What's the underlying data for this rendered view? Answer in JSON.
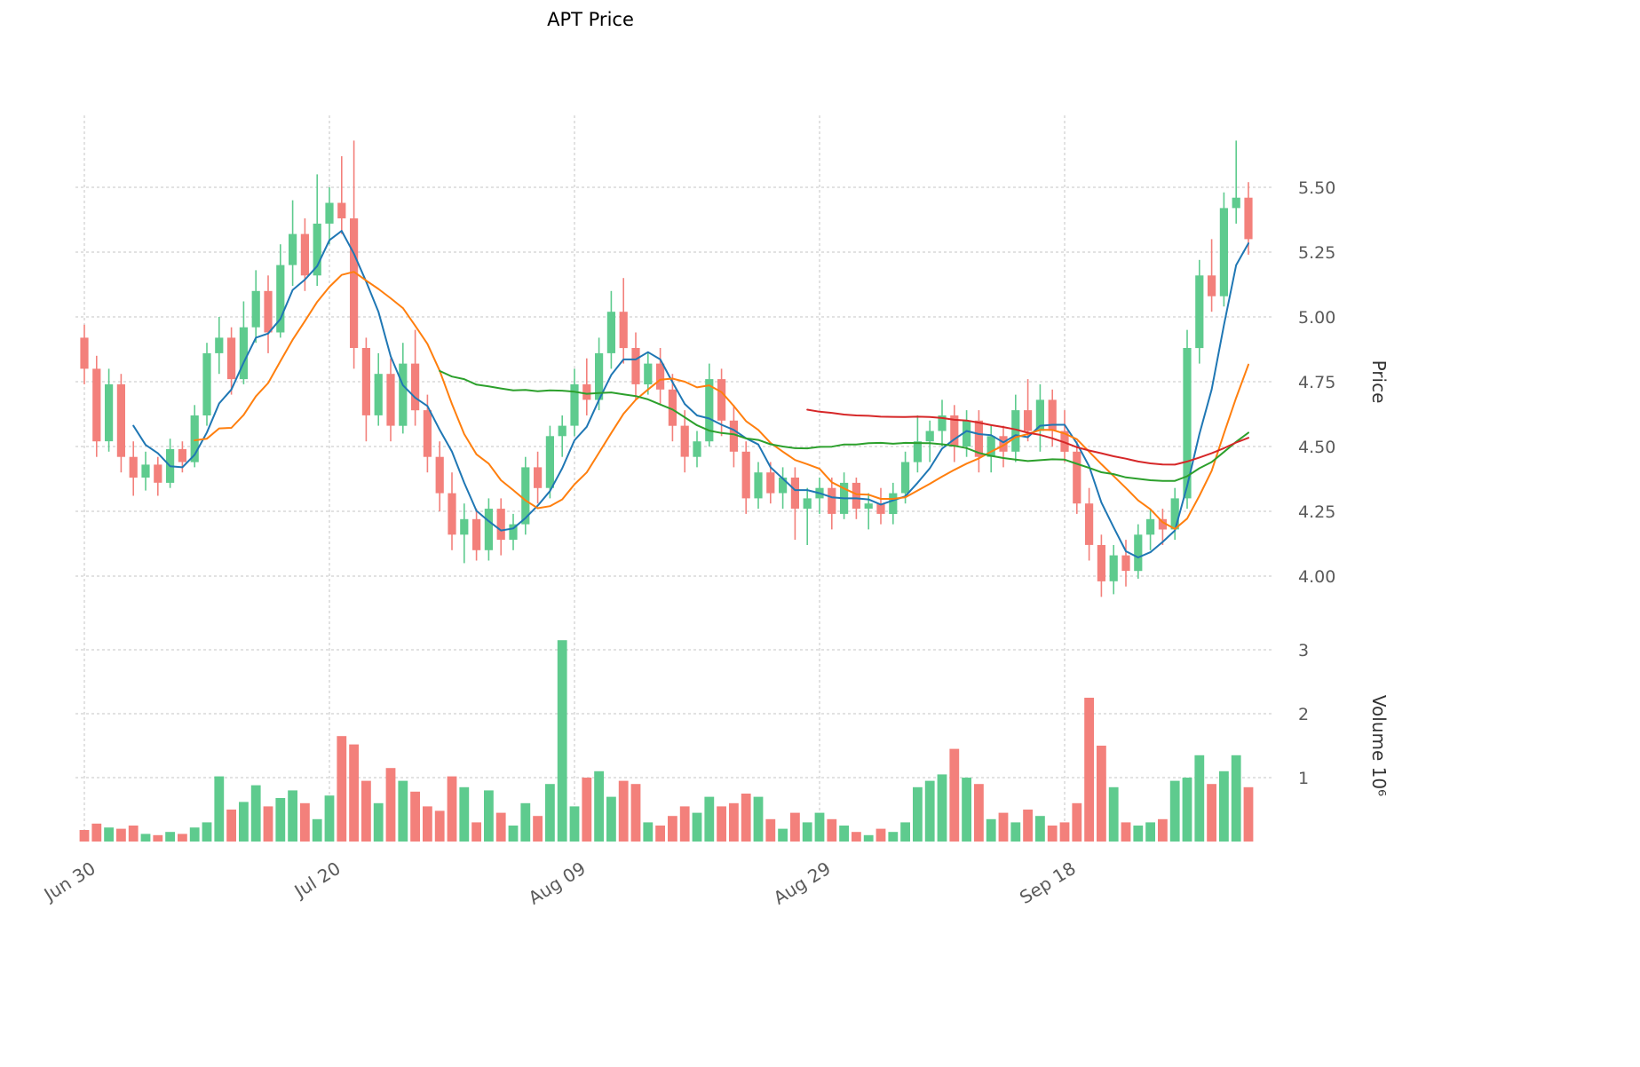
{
  "chart_data": {
    "type": "candlestick",
    "title": "APT Price",
    "ylabel_price": "Price",
    "ylabel_volume": "Volume  10⁶",
    "price_ticks": [
      "4.00",
      "4.25",
      "4.50",
      "4.75",
      "5.00",
      "5.25",
      "5.50"
    ],
    "volume_ticks": [
      "1",
      "2",
      "3"
    ],
    "x_ticks": [
      {
        "index": 0,
        "label": "Jun 30"
      },
      {
        "index": 20,
        "label": "Jul 20"
      },
      {
        "index": 40,
        "label": "Aug 09"
      },
      {
        "index": 60,
        "label": "Aug 29"
      },
      {
        "index": 80,
        "label": "Sep 18"
      }
    ],
    "grid": true,
    "legend_position": "none",
    "price_range": [
      3.85,
      5.75
    ],
    "volume_range_millions": [
      0,
      3.3
    ],
    "colors": {
      "up": "#5ecb8e",
      "down": "#f3807b",
      "grid": "#c4c4c4",
      "tick_label": "#5a5a5a",
      "axis_label": "#333333"
    },
    "moving_averages": [
      {
        "name": "MA5",
        "window": 5,
        "color": "#1f77b4"
      },
      {
        "name": "MA10",
        "window": 10,
        "color": "#ff7f0e"
      },
      {
        "name": "MA30",
        "window": 30,
        "color": "#2ca02c"
      },
      {
        "name": "MA60",
        "window": 60,
        "color": "#d62728"
      }
    ],
    "candles_format": [
      "open",
      "high",
      "low",
      "close",
      "volume_millions"
    ],
    "candles": [
      [
        4.92,
        4.97,
        4.74,
        4.8,
        0.18
      ],
      [
        4.8,
        4.85,
        4.46,
        4.52,
        0.28
      ],
      [
        4.52,
        4.8,
        4.48,
        4.74,
        0.22
      ],
      [
        4.74,
        4.78,
        4.4,
        4.46,
        0.2
      ],
      [
        4.46,
        4.52,
        4.31,
        4.38,
        0.25
      ],
      [
        4.38,
        4.48,
        4.33,
        4.43,
        0.12
      ],
      [
        4.43,
        4.46,
        4.31,
        4.36,
        0.1
      ],
      [
        4.36,
        4.53,
        4.34,
        4.49,
        0.15
      ],
      [
        4.49,
        4.52,
        4.4,
        4.44,
        0.12
      ],
      [
        4.44,
        4.66,
        4.42,
        4.62,
        0.22
      ],
      [
        4.62,
        4.9,
        4.58,
        4.86,
        0.3
      ],
      [
        4.86,
        5.0,
        4.78,
        4.92,
        1.02
      ],
      [
        4.92,
        4.96,
        4.7,
        4.76,
        0.5
      ],
      [
        4.76,
        5.06,
        4.74,
        4.96,
        0.62
      ],
      [
        4.96,
        5.18,
        4.9,
        5.1,
        0.88
      ],
      [
        5.1,
        5.16,
        4.86,
        4.94,
        0.55
      ],
      [
        4.94,
        5.28,
        4.92,
        5.2,
        0.68
      ],
      [
        5.2,
        5.45,
        5.12,
        5.32,
        0.8
      ],
      [
        5.32,
        5.38,
        5.1,
        5.16,
        0.6
      ],
      [
        5.16,
        5.55,
        5.12,
        5.36,
        0.35
      ],
      [
        5.36,
        5.5,
        5.28,
        5.44,
        0.72
      ],
      [
        5.44,
        5.62,
        5.32,
        5.38,
        1.65
      ],
      [
        5.38,
        5.68,
        4.8,
        4.88,
        1.52
      ],
      [
        4.88,
        4.92,
        4.52,
        4.62,
        0.95
      ],
      [
        4.62,
        4.86,
        4.58,
        4.78,
        0.6
      ],
      [
        4.78,
        4.84,
        4.52,
        4.58,
        1.15
      ],
      [
        4.58,
        4.9,
        4.55,
        4.82,
        0.95
      ],
      [
        4.82,
        4.95,
        4.58,
        4.64,
        0.78
      ],
      [
        4.64,
        4.7,
        4.4,
        4.46,
        0.55
      ],
      [
        4.46,
        4.52,
        4.25,
        4.32,
        0.48
      ],
      [
        4.32,
        4.4,
        4.1,
        4.16,
        1.02
      ],
      [
        4.16,
        4.28,
        4.05,
        4.22,
        0.85
      ],
      [
        4.22,
        4.26,
        4.06,
        4.1,
        0.3
      ],
      [
        4.1,
        4.3,
        4.06,
        4.26,
        0.8
      ],
      [
        4.26,
        4.3,
        4.08,
        4.14,
        0.45
      ],
      [
        4.14,
        4.24,
        4.1,
        4.2,
        0.25
      ],
      [
        4.2,
        4.46,
        4.16,
        4.42,
        0.6
      ],
      [
        4.42,
        4.48,
        4.28,
        4.34,
        0.4
      ],
      [
        4.34,
        4.58,
        4.3,
        4.54,
        0.9
      ],
      [
        4.54,
        4.62,
        4.46,
        4.58,
        3.15
      ],
      [
        4.58,
        4.8,
        4.54,
        4.74,
        0.55
      ],
      [
        4.74,
        4.84,
        4.62,
        4.68,
        1.0
      ],
      [
        4.68,
        4.92,
        4.64,
        4.86,
        1.1
      ],
      [
        4.86,
        5.1,
        4.8,
        5.02,
        0.7
      ],
      [
        5.02,
        5.15,
        4.82,
        4.88,
        0.95
      ],
      [
        4.88,
        4.94,
        4.68,
        4.74,
        0.9
      ],
      [
        4.74,
        4.86,
        4.7,
        4.82,
        0.3
      ],
      [
        4.82,
        4.88,
        4.66,
        4.72,
        0.25
      ],
      [
        4.72,
        4.78,
        4.52,
        4.58,
        0.4
      ],
      [
        4.58,
        4.64,
        4.4,
        4.46,
        0.55
      ],
      [
        4.46,
        4.56,
        4.42,
        4.52,
        0.45
      ],
      [
        4.52,
        4.82,
        4.5,
        4.76,
        0.7
      ],
      [
        4.76,
        4.8,
        4.54,
        4.6,
        0.55
      ],
      [
        4.6,
        4.66,
        4.42,
        4.48,
        0.6
      ],
      [
        4.48,
        4.52,
        4.24,
        4.3,
        0.75
      ],
      [
        4.3,
        4.44,
        4.26,
        4.4,
        0.7
      ],
      [
        4.4,
        4.44,
        4.28,
        4.32,
        0.35
      ],
      [
        4.32,
        4.42,
        4.26,
        4.38,
        0.2
      ],
      [
        4.38,
        4.42,
        4.14,
        4.26,
        0.45
      ],
      [
        4.26,
        4.34,
        4.12,
        4.3,
        0.3
      ],
      [
        4.3,
        4.38,
        4.24,
        4.34,
        0.45
      ],
      [
        4.34,
        4.38,
        4.18,
        4.24,
        0.35
      ],
      [
        4.24,
        4.4,
        4.22,
        4.36,
        0.25
      ],
      [
        4.36,
        4.38,
        4.22,
        4.26,
        0.15
      ],
      [
        4.26,
        4.32,
        4.18,
        4.28,
        0.1
      ],
      [
        4.28,
        4.34,
        4.2,
        4.24,
        0.2
      ],
      [
        4.24,
        4.36,
        4.2,
        4.32,
        0.15
      ],
      [
        4.32,
        4.48,
        4.28,
        4.44,
        0.3
      ],
      [
        4.44,
        4.62,
        4.4,
        4.52,
        0.85
      ],
      [
        4.52,
        4.6,
        4.44,
        4.56,
        0.95
      ],
      [
        4.56,
        4.68,
        4.5,
        4.62,
        1.05
      ],
      [
        4.62,
        4.66,
        4.44,
        4.5,
        1.45
      ],
      [
        4.5,
        4.64,
        4.46,
        4.6,
        1.0
      ],
      [
        4.6,
        4.64,
        4.4,
        4.46,
        0.9
      ],
      [
        4.46,
        4.58,
        4.4,
        4.54,
        0.35
      ],
      [
        4.54,
        4.58,
        4.42,
        4.48,
        0.45
      ],
      [
        4.48,
        4.7,
        4.44,
        4.64,
        0.3
      ],
      [
        4.64,
        4.76,
        4.52,
        4.56,
        0.5
      ],
      [
        4.56,
        4.74,
        4.48,
        4.68,
        0.4
      ],
      [
        4.68,
        4.72,
        4.5,
        4.56,
        0.25
      ],
      [
        4.56,
        4.64,
        4.44,
        4.48,
        0.3
      ],
      [
        4.48,
        4.52,
        4.24,
        4.28,
        0.6
      ],
      [
        4.28,
        4.34,
        4.06,
        4.12,
        2.25
      ],
      [
        4.12,
        4.16,
        3.92,
        3.98,
        1.5
      ],
      [
        3.98,
        4.12,
        3.93,
        4.08,
        0.85
      ],
      [
        4.08,
        4.14,
        3.96,
        4.02,
        0.3
      ],
      [
        4.02,
        4.2,
        3.99,
        4.16,
        0.25
      ],
      [
        4.16,
        4.26,
        4.1,
        4.22,
        0.3
      ],
      [
        4.22,
        4.26,
        4.12,
        4.18,
        0.35
      ],
      [
        4.18,
        4.34,
        4.14,
        4.3,
        0.95
      ],
      [
        4.3,
        4.95,
        4.26,
        4.88,
        1.0
      ],
      [
        4.88,
        5.22,
        4.82,
        5.16,
        1.35
      ],
      [
        5.16,
        5.3,
        5.02,
        5.08,
        0.9
      ],
      [
        5.08,
        5.48,
        5.04,
        5.42,
        1.1
      ],
      [
        5.42,
        5.68,
        5.36,
        5.46,
        1.35
      ],
      [
        5.46,
        5.52,
        5.24,
        5.3,
        0.85
      ]
    ]
  }
}
